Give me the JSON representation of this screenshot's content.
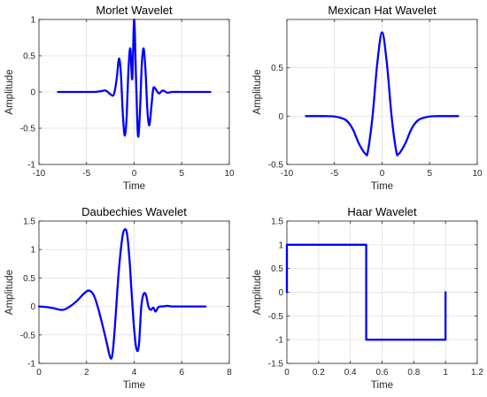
{
  "chart_data": [
    {
      "type": "line",
      "title": "Morlet Wavelet",
      "xlabel": "Time",
      "ylabel": "Amplitude",
      "xlim": [
        -10,
        10
      ],
      "ylim": [
        -1,
        1
      ],
      "xticks": [
        -10,
        -5,
        0,
        5,
        10
      ],
      "yticks": [
        -1,
        -0.5,
        0,
        0.5,
        1
      ],
      "xtick_labels": [
        "-10",
        "-5",
        "0",
        "5",
        "10"
      ],
      "ytick_labels": [
        "-1",
        "-0.5",
        "0",
        "0.5",
        "1"
      ],
      "grid": true,
      "color": "#0000ff",
      "series": [
        {
          "x": [
            -8,
            -5,
            -4,
            -3.5,
            -3,
            -2.6,
            -2.2,
            -2,
            -1.8,
            -1.6,
            -1.4,
            -1.2,
            -1.0,
            -0.8,
            -0.6,
            -0.4,
            -0.2,
            0,
            0.2,
            0.4,
            0.6,
            0.8,
            1.0,
            1.2,
            1.4,
            1.6,
            1.8,
            2.0,
            2.2,
            2.6,
            3.0,
            3.5,
            4,
            5,
            8
          ],
          "y": [
            0,
            0,
            0.002,
            0.01,
            0.02,
            -0.02,
            -0.05,
            0.04,
            0.22,
            0.46,
            0.27,
            -0.28,
            -0.6,
            -0.37,
            0.3,
            0.6,
            0.18,
            1.0,
            0.18,
            -0.6,
            -0.3,
            0.37,
            0.6,
            0.28,
            -0.27,
            -0.46,
            -0.22,
            0.04,
            0.05,
            -0.02,
            0.02,
            -0.01,
            0,
            0,
            0
          ]
        }
      ]
    },
    {
      "type": "line",
      "title": "Mexican Hat Wavelet",
      "xlabel": "Time",
      "ylabel": "Amplitude",
      "xlim": [
        -10,
        10
      ],
      "ylim": [
        -0.5,
        1
      ],
      "xticks": [
        -10,
        -5,
        0,
        5,
        10
      ],
      "yticks": [
        -0.5,
        0,
        0.5
      ],
      "xtick_labels": [
        "-10",
        "-5",
        "0",
        "5",
        "10"
      ],
      "ytick_labels": [
        "-0.5",
        "0",
        "0.5"
      ],
      "grid": true,
      "color": "#0000ff",
      "series": [
        {
          "x": [
            -8,
            -6,
            -5,
            -4,
            -3.5,
            -3,
            -2.5,
            -2,
            -1.73,
            -1.5,
            -1,
            -0.5,
            0,
            0.5,
            1,
            1.5,
            1.73,
            2,
            2.5,
            3,
            3.5,
            4,
            5,
            6,
            8
          ],
          "y": [
            0,
            0,
            -0.004,
            -0.03,
            -0.07,
            -0.15,
            -0.27,
            -0.36,
            -0.39,
            -0.37,
            0,
            0.55,
            0.867,
            0.55,
            0,
            -0.37,
            -0.39,
            -0.36,
            -0.27,
            -0.15,
            -0.07,
            -0.03,
            -0.004,
            0,
            0
          ]
        }
      ]
    },
    {
      "type": "line",
      "title": "Daubechies Wavelet",
      "xlabel": "Time",
      "ylabel": "Amplitude",
      "xlim": [
        0,
        8
      ],
      "ylim": [
        -1,
        1.5
      ],
      "xticks": [
        0,
        2,
        4,
        6,
        8
      ],
      "yticks": [
        -1,
        -0.5,
        0,
        0.5,
        1,
        1.5
      ],
      "xtick_labels": [
        "0",
        "2",
        "4",
        "6",
        "8"
      ],
      "ytick_labels": [
        "-1",
        "-0.5",
        "0",
        "0.5",
        "1",
        "1.5"
      ],
      "grid": true,
      "color": "#0000ff",
      "series": [
        {
          "x": [
            0,
            0.3,
            0.6,
            1.0,
            1.3,
            1.6,
            1.9,
            2.1,
            2.3,
            2.5,
            2.8,
            3.0,
            3.1,
            3.2,
            3.35,
            3.5,
            3.6,
            3.7,
            3.8,
            3.9,
            4.0,
            4.1,
            4.2,
            4.3,
            4.4,
            4.5,
            4.6,
            4.7,
            4.8,
            4.9,
            5.0,
            5.1,
            5.2,
            5.4,
            5.6,
            6.0,
            7.0
          ],
          "y": [
            0,
            -0.01,
            -0.03,
            -0.06,
            0.0,
            0.1,
            0.23,
            0.28,
            0.2,
            -0.05,
            -0.55,
            -0.9,
            -0.8,
            -0.3,
            0.6,
            1.2,
            1.35,
            1.28,
            0.85,
            0.2,
            -0.4,
            -0.75,
            -0.68,
            0.0,
            0.22,
            0.2,
            0.0,
            -0.06,
            -0.02,
            -0.09,
            -0.02,
            0.0,
            0.0,
            0.01,
            0.0,
            0.0,
            0.0
          ]
        }
      ]
    },
    {
      "type": "line",
      "title": "Haar Wavelet",
      "xlabel": "Time",
      "ylabel": "Amplitude",
      "xlim": [
        0,
        1.2
      ],
      "ylim": [
        -1.5,
        1.5
      ],
      "xticks": [
        0,
        0.2,
        0.4,
        0.6,
        0.8,
        1,
        1.2
      ],
      "yticks": [
        -1.5,
        -1,
        -0.5,
        0,
        0.5,
        1,
        1.5
      ],
      "xtick_labels": [
        "0",
        "0.2",
        "0.4",
        "0.6",
        "0.8",
        "1",
        "1.2"
      ],
      "ytick_labels": [
        "-1.5",
        "-1",
        "-0.5",
        "0",
        "0.5",
        "1",
        "1.5"
      ],
      "grid": true,
      "color": "#0000ff",
      "series": [
        {
          "x": [
            0,
            0,
            0.5,
            0.5,
            1,
            1
          ],
          "y": [
            0,
            1,
            1,
            -1,
            -1,
            0
          ]
        }
      ]
    }
  ]
}
